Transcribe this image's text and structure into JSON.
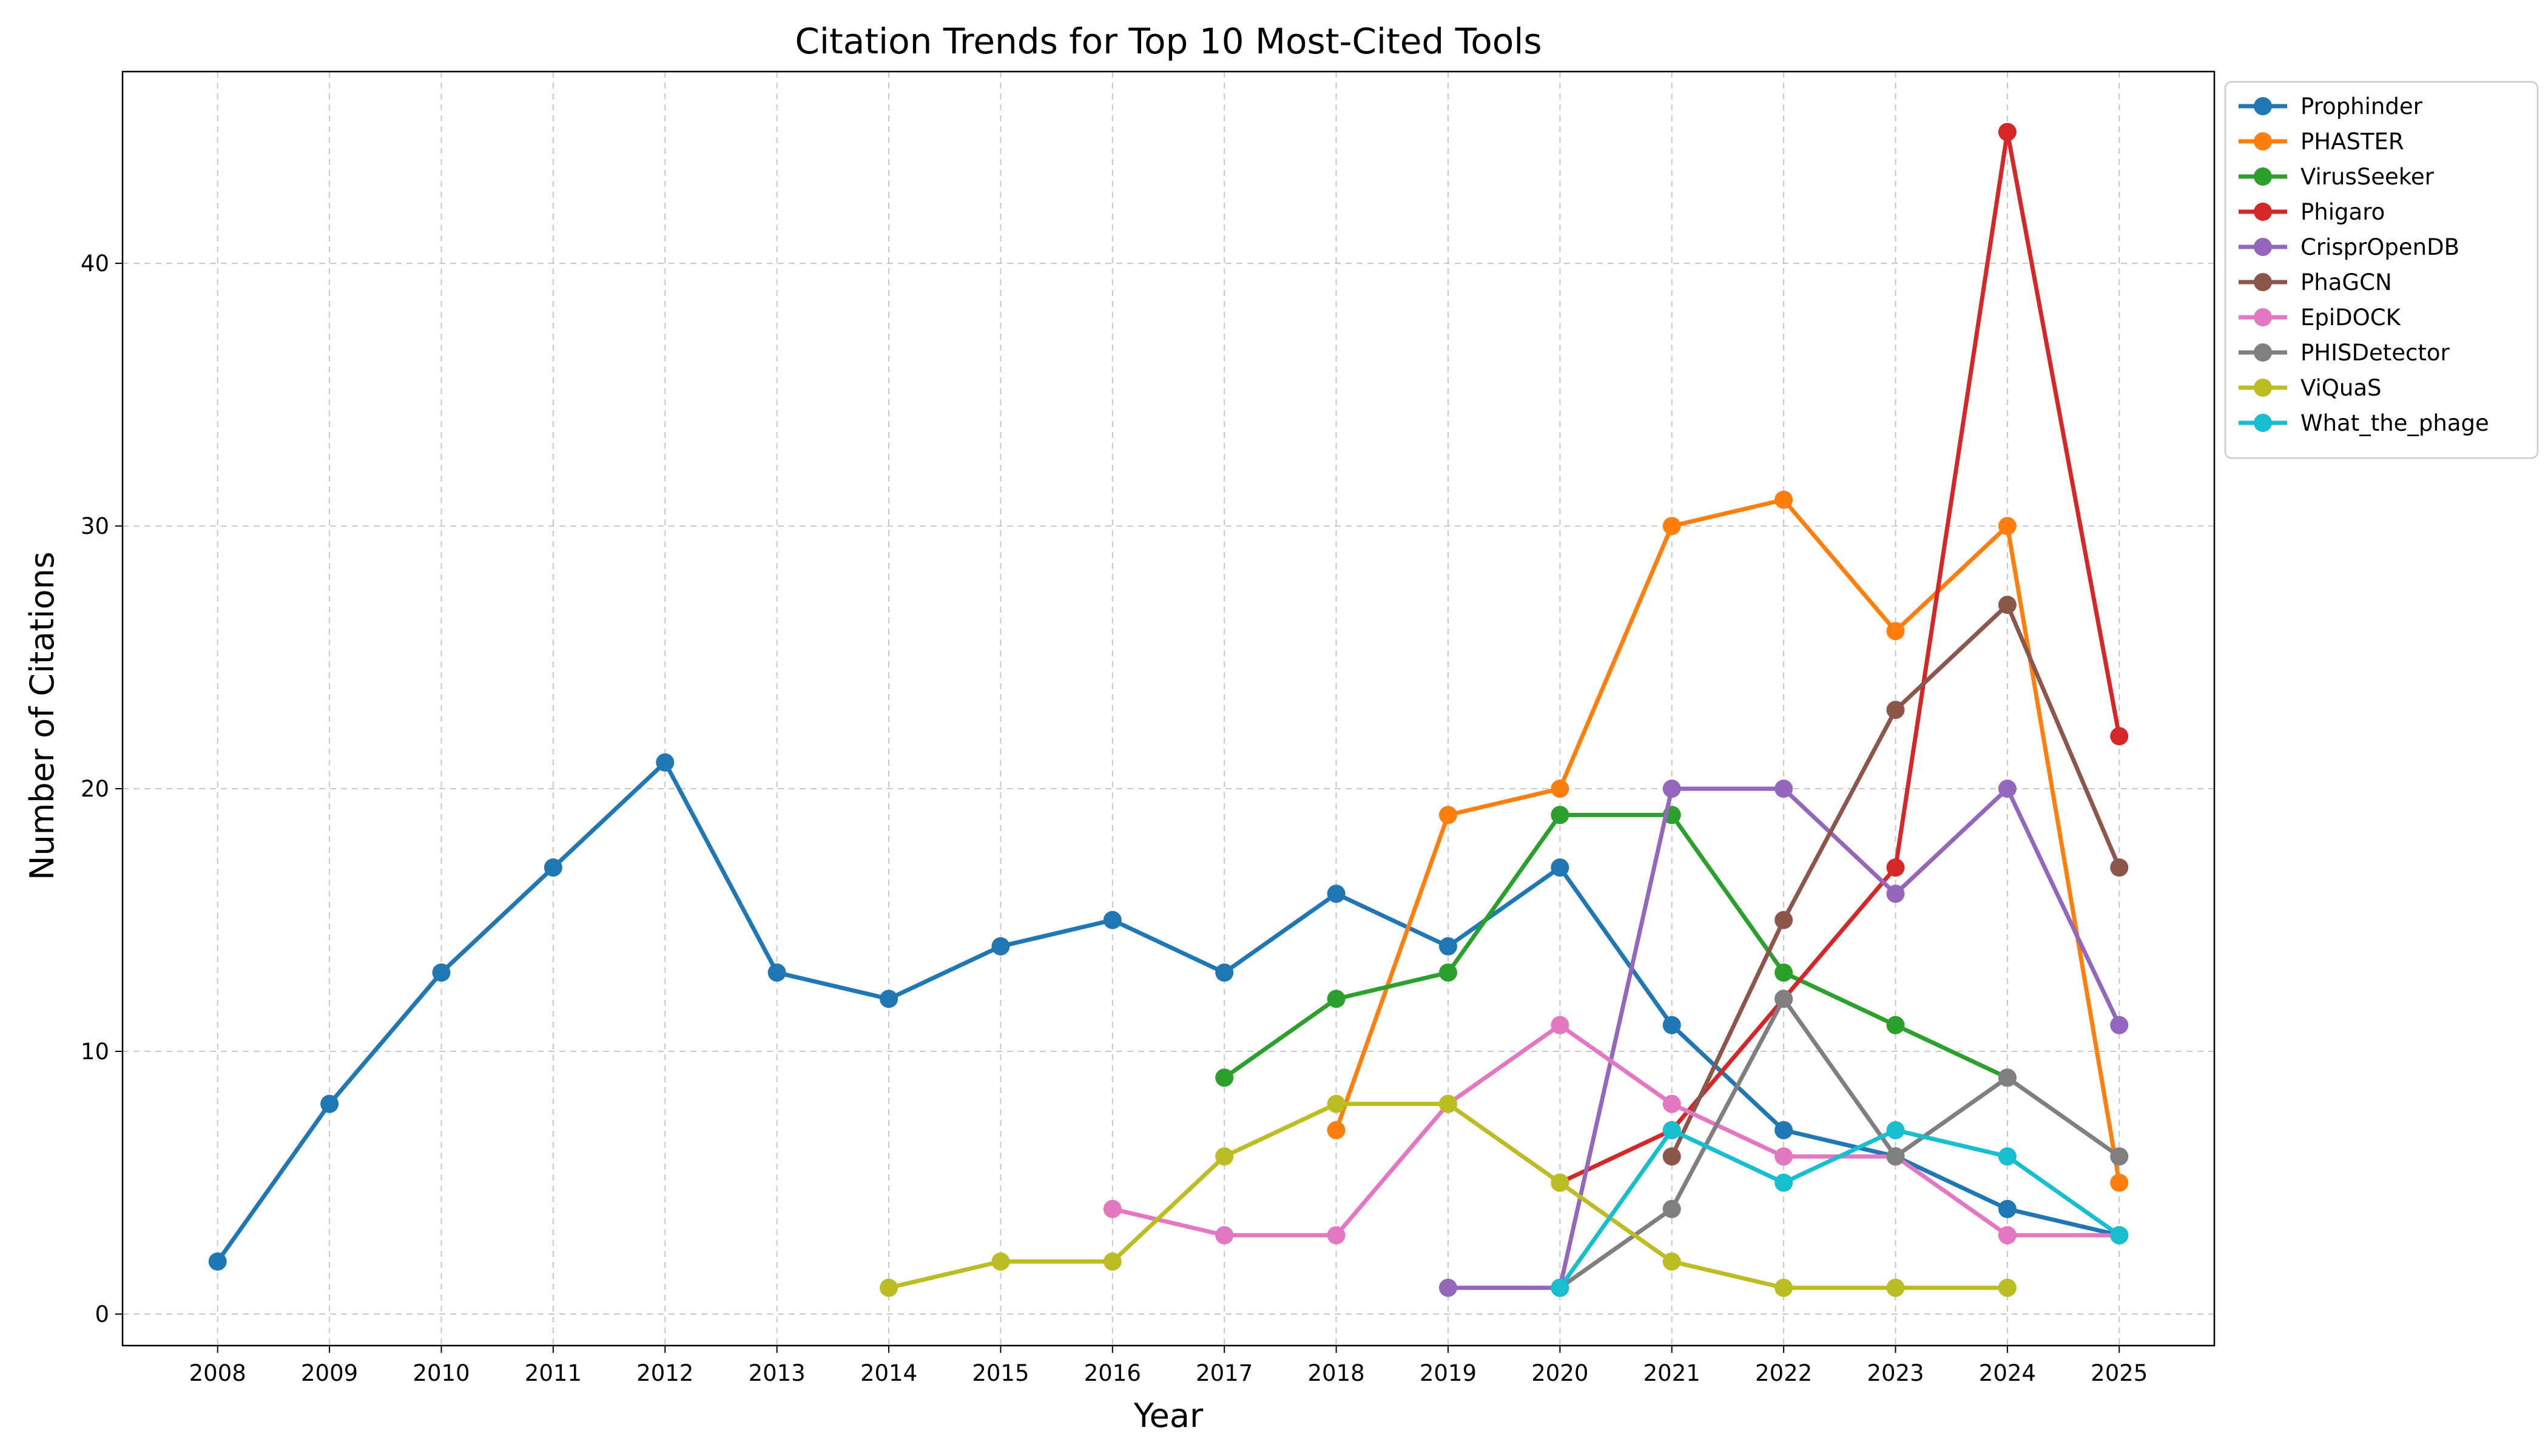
{
  "chart_data": {
    "type": "line",
    "title": "Citation Trends for Top 10 Most-Cited Tools",
    "xlabel": "Year",
    "ylabel": "Number of Citations",
    "x_ticks": [
      "2008",
      "2009",
      "2010",
      "2011",
      "2012",
      "2013",
      "2014",
      "2015",
      "2016",
      "2017",
      "2018",
      "2019",
      "2020",
      "2021",
      "2022",
      "2023",
      "2024",
      "2025"
    ],
    "y_ticks": [
      0,
      10,
      20,
      30,
      40
    ],
    "xlim": [
      2007.15,
      2025.85
    ],
    "ylim": [
      -1.2,
      47.3
    ],
    "grid": true,
    "legend_position": "outside-top-right",
    "series": [
      {
        "name": "Prophinder",
        "color": "#1f77b4",
        "x": [
          2008,
          2009,
          2010,
          2011,
          2012,
          2013,
          2014,
          2015,
          2016,
          2017,
          2018,
          2019,
          2020,
          2021,
          2022,
          2023,
          2024,
          2025
        ],
        "y": [
          2,
          8,
          13,
          17,
          21,
          13,
          12,
          14,
          15,
          13,
          16,
          14,
          17,
          11,
          7,
          6,
          4,
          3
        ]
      },
      {
        "name": "PHASTER",
        "color": "#ff7f0e",
        "x": [
          2018,
          2019,
          2020,
          2021,
          2022,
          2023,
          2024,
          2025
        ],
        "y": [
          7,
          19,
          20,
          30,
          31,
          26,
          30,
          5
        ]
      },
      {
        "name": "VirusSeeker",
        "color": "#2ca02c",
        "x": [
          2017,
          2018,
          2019,
          2020,
          2021,
          2022,
          2023,
          2024
        ],
        "y": [
          9,
          12,
          13,
          19,
          19,
          13,
          11,
          9
        ]
      },
      {
        "name": "Phigaro",
        "color": "#d62728",
        "x": [
          2020,
          2021,
          2022,
          2023,
          2024,
          2025
        ],
        "y": [
          5,
          7,
          12,
          17,
          45,
          22
        ]
      },
      {
        "name": "CrisprOpenDB",
        "color": "#9467bd",
        "x": [
          2019,
          2020,
          2021,
          2022,
          2023,
          2024,
          2025
        ],
        "y": [
          1,
          1,
          20,
          20,
          16,
          20,
          11
        ]
      },
      {
        "name": "PhaGCN",
        "color": "#8c564b",
        "x": [
          2021,
          2022,
          2023,
          2024,
          2025
        ],
        "y": [
          6,
          15,
          23,
          27,
          17
        ]
      },
      {
        "name": "EpiDOCK",
        "color": "#e377c2",
        "x": [
          2016,
          2017,
          2018,
          2019,
          2020,
          2021,
          2022,
          2023,
          2024,
          2025
        ],
        "y": [
          4,
          3,
          3,
          8,
          11,
          8,
          6,
          6,
          3,
          3
        ]
      },
      {
        "name": "PHISDetector",
        "color": "#7f7f7f",
        "x": [
          2020,
          2021,
          2022,
          2023,
          2024,
          2025
        ],
        "y": [
          1,
          4,
          12,
          6,
          9,
          6
        ]
      },
      {
        "name": "ViQuaS",
        "color": "#bcbd22",
        "x": [
          2014,
          2015,
          2016,
          2017,
          2018,
          2019,
          2020,
          2021,
          2022,
          2023,
          2024
        ],
        "y": [
          1,
          2,
          2,
          6,
          8,
          8,
          5,
          2,
          1,
          1,
          1
        ]
      },
      {
        "name": "What_the_phage",
        "color": "#17becf",
        "x": [
          2020,
          2021,
          2022,
          2023,
          2024,
          2025
        ],
        "y": [
          1,
          7,
          5,
          7,
          6,
          3
        ]
      }
    ]
  }
}
